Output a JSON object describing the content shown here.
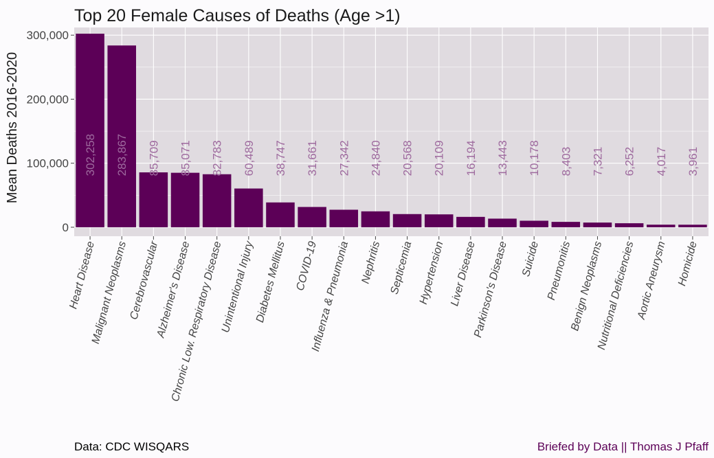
{
  "chart_data": {
    "type": "bar",
    "title": "Top 20 Female Causes of Deaths (Age >1)",
    "xlabel": "",
    "ylabel": "Mean Deaths 2016-2020",
    "ylim": [
      -14000,
      312000
    ],
    "yticks": [
      0,
      100000,
      200000,
      300000
    ],
    "ytick_labels": [
      "0",
      "100,000",
      "200,000",
      "300,000"
    ],
    "grid": true,
    "legend": "none",
    "categories": [
      "Heart Disease",
      "Malignant Neoplasms",
      "Cerebrovascular",
      "Alzheimer's Disease",
      "Chronic Low. Respiratory Disease",
      "Unintentional Injury",
      "Diabetes Mellitus",
      "COVID-19",
      "Influenza & Pneumonia",
      "Nephritis",
      "Septicemia",
      "Hypertension",
      "Liver Disease",
      "Parkinson's Disease",
      "Suicide",
      "Pneumonitis",
      "Benign Neoplasms",
      "Nutritional Deficiencies",
      "Aortic Aneurysm",
      "Homicide"
    ],
    "values": [
      302258,
      283867,
      85709,
      85071,
      82783,
      60489,
      38747,
      31661,
      27342,
      24840,
      20568,
      20109,
      16194,
      13443,
      10178,
      8403,
      7321,
      6252,
      4017,
      3961
    ],
    "value_labels": [
      "302,258",
      "283,867",
      "85,709",
      "85,071",
      "82,783",
      "60,489",
      "38,747",
      "31,661",
      "27,342",
      "24,840",
      "20,568",
      "20,109",
      "16,194",
      "13,443",
      "10,178",
      "8,403",
      "7,321",
      "6,252",
      "4,017",
      "3,961"
    ],
    "label_position_value": 80000,
    "colors": {
      "bar": "#5c0057",
      "panel": "#e0dbe0",
      "grid": "#ffffff",
      "data_label": "#9e6a9e",
      "credit": "#5c0057"
    }
  },
  "caption": {
    "source": "Data: CDC WISQARS",
    "credit": "Briefed by Data || Thomas J Pfaff"
  }
}
